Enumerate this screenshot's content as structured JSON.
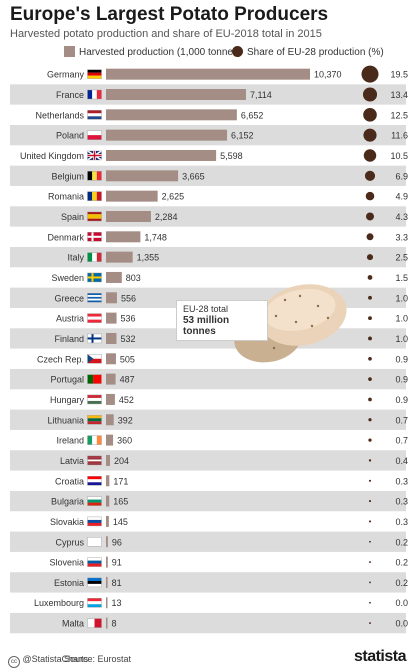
{
  "header": {
    "title": "Europe's Largest Potato Producers",
    "subtitle": "Harvested potato production and share of EU-2018 total in 2015"
  },
  "legend": {
    "production_label": "Harvested production (1,000 tonnes)",
    "share_label": "Share of EU-28 production (%)"
  },
  "callout": {
    "line1": "EU-28 total",
    "line2": "53 million",
    "line3": "tonnes"
  },
  "footer": {
    "credit": "@StatistaCharts",
    "source": "Source: Eurostat",
    "brand": "statista"
  },
  "colors": {
    "bar": "#a38d84",
    "dot": "#4a2a1a",
    "stripe": "#dcdcdc"
  },
  "chart_data": {
    "type": "bar",
    "orientation": "horizontal",
    "title": "Europe's Largest Potato Producers",
    "subtitle": "Harvested potato production and share of EU-2018 total in 2015",
    "categories": [
      "Germany",
      "France",
      "Netherlands",
      "Poland",
      "United Kingdom",
      "Belgium",
      "Romania",
      "Spain",
      "Denmark",
      "Italy",
      "Sweden",
      "Greece",
      "Austria",
      "Finland",
      "Czech Rep.",
      "Portugal",
      "Hungary",
      "Lithuania",
      "Ireland",
      "Latvia",
      "Croatia",
      "Bulgaria",
      "Slovakia",
      "Cyprus",
      "Slovenia",
      "Estonia",
      "Luxembourg",
      "Malta"
    ],
    "series": [
      {
        "name": "Harvested production (1,000 tonnes)",
        "values": [
          10370,
          7114,
          6652,
          6152,
          5598,
          3665,
          2625,
          2284,
          1748,
          1355,
          803,
          556,
          536,
          532,
          505,
          487,
          452,
          392,
          360,
          204,
          171,
          165,
          145,
          96,
          91,
          81,
          13,
          8
        ],
        "labels": [
          "10,370",
          "7,114",
          "6,652",
          "6,152",
          "5,598",
          "3,665",
          "2,625",
          "2,284",
          "1,748",
          "1,355",
          "803",
          "556",
          "536",
          "532",
          "505",
          "487",
          "452",
          "392",
          "360",
          "204",
          "171",
          "165",
          "145",
          "96",
          "91",
          "81",
          "13",
          "8"
        ]
      },
      {
        "name": "Share of EU-28 production (%)",
        "values": [
          19.5,
          13.4,
          12.5,
          11.6,
          10.5,
          6.9,
          4.9,
          4.3,
          3.3,
          2.5,
          1.5,
          1.0,
          1.0,
          1.0,
          0.9,
          0.9,
          0.9,
          0.7,
          0.7,
          0.4,
          0.3,
          0.3,
          0.3,
          0.2,
          0.2,
          0.2,
          0.0,
          0.0
        ],
        "labels": [
          "19.5",
          "13.4",
          "12.5",
          "11.6",
          "10.5",
          "6.9",
          "4.9",
          "4.3",
          "3.3",
          "2.5",
          "1.5",
          "1.0",
          "1.0",
          "1.0",
          "0.9",
          "0.9",
          "0.9",
          "0.7",
          "0.7",
          "0.4",
          "0.3",
          "0.3",
          "0.3",
          "0.2",
          "0.2",
          "0.2",
          "0.0",
          "0.0"
        ]
      }
    ],
    "flags": [
      "germany",
      "france",
      "netherlands",
      "poland",
      "united-kingdom",
      "belgium",
      "romania",
      "spain",
      "denmark",
      "italy",
      "sweden",
      "greece",
      "austria",
      "finland",
      "czech-republic",
      "portugal",
      "hungary",
      "lithuania",
      "ireland",
      "latvia",
      "croatia",
      "bulgaria",
      "slovakia",
      "cyprus",
      "slovenia",
      "estonia",
      "luxembourg",
      "malta"
    ],
    "xlim": [
      0,
      10370
    ],
    "grid": false,
    "legend_position": "top"
  }
}
